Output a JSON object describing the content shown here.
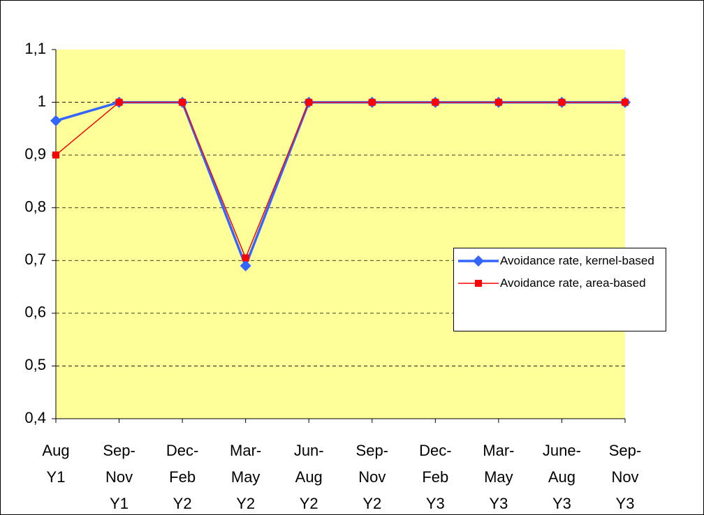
{
  "chart_data": {
    "type": "line",
    "categories": [
      [
        "Aug",
        "Y1"
      ],
      [
        "Sep-",
        "Nov",
        "Y1"
      ],
      [
        "Dec-",
        "Feb",
        "Y2"
      ],
      [
        "Mar-",
        "May",
        "Y2"
      ],
      [
        "Jun-",
        "Aug",
        "Y2"
      ],
      [
        "Sep-",
        "Nov",
        "Y2"
      ],
      [
        "Dec-",
        "Feb",
        "Y3"
      ],
      [
        "Mar-",
        "May",
        "Y3"
      ],
      [
        "June-",
        "Aug",
        "Y3"
      ],
      [
        "Sep-",
        "Nov",
        "Y3"
      ]
    ],
    "series": [
      {
        "name": "Avoidance rate, kernel-based",
        "color": "#3366ff",
        "marker": "diamond",
        "values": [
          0.965,
          1,
          1,
          0.69,
          1,
          1,
          1,
          1,
          1,
          1
        ]
      },
      {
        "name": "Avoidance rate, area-based",
        "color": "#ff0000",
        "marker": "square",
        "values": [
          0.9,
          1,
          1,
          0.705,
          1,
          1,
          1,
          1,
          1,
          1
        ]
      }
    ],
    "ylim": [
      0.4,
      1.1
    ],
    "yticks": [
      {
        "value": 0.4,
        "label": "0,4"
      },
      {
        "value": 0.5,
        "label": "0,5"
      },
      {
        "value": 0.6,
        "label": "0,6"
      },
      {
        "value": 0.7,
        "label": "0,7"
      },
      {
        "value": 0.8,
        "label": "0,8"
      },
      {
        "value": 0.9,
        "label": "0,9"
      },
      1,
      {
        "value": 1.1,
        "label": "1,1"
      }
    ],
    "grid": true,
    "plot_background": "#ffff99"
  }
}
